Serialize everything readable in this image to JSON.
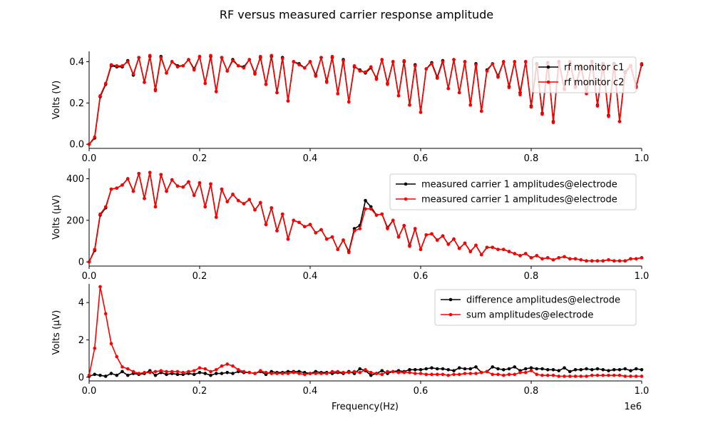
{
  "figure": {
    "title": "RF versus measured carrier response amplitude",
    "xlabel": "Frequency(Hz)",
    "x_offset_label": "1e6"
  },
  "colors": {
    "series_a": "#000000",
    "series_b": "#ff0000"
  },
  "chart_data": [
    {
      "type": "line",
      "ylabel": "Volts (V)",
      "xlim": [
        0,
        1000000
      ],
      "ylim": [
        -0.02,
        0.45
      ],
      "xticks": [
        0,
        200000,
        400000,
        600000,
        800000,
        1000000
      ],
      "xtick_labels": [
        "0.0",
        "0.2",
        "0.4",
        "0.6",
        "0.8",
        "1.0"
      ],
      "yticks": [
        0,
        0.2,
        0.4
      ],
      "ytick_labels": [
        "0.0",
        "0.2",
        "0.4"
      ],
      "legend_loc": "upper right",
      "x": [
        0,
        10000,
        20000,
        30000,
        40000,
        50000,
        60000,
        70000,
        80000,
        90000,
        100000,
        110000,
        120000,
        130000,
        140000,
        150000,
        160000,
        170000,
        180000,
        190000,
        200000,
        210000,
        220000,
        230000,
        240000,
        250000,
        260000,
        270000,
        280000,
        290000,
        300000,
        310000,
        320000,
        330000,
        340000,
        350000,
        360000,
        370000,
        380000,
        390000,
        400000,
        410000,
        420000,
        430000,
        440000,
        450000,
        460000,
        470000,
        480000,
        490000,
        500000,
        510000,
        520000,
        530000,
        540000,
        550000,
        560000,
        570000,
        580000,
        590000,
        600000,
        610000,
        620000,
        630000,
        640000,
        650000,
        660000,
        670000,
        680000,
        690000,
        700000,
        710000,
        720000,
        730000,
        740000,
        750000,
        760000,
        770000,
        780000,
        790000,
        800000,
        810000,
        820000,
        830000,
        840000,
        850000,
        860000,
        870000,
        880000,
        890000,
        900000,
        910000,
        920000,
        930000,
        940000,
        950000,
        960000,
        970000,
        980000,
        990000,
        1000000
      ],
      "series": [
        {
          "name": "rf monitor c1",
          "color": "#000000",
          "values": [
            0.0,
            0.03,
            0.23,
            0.29,
            0.38,
            0.375,
            0.375,
            0.405,
            0.335,
            0.42,
            0.3,
            0.425,
            0.265,
            0.425,
            0.345,
            0.4,
            0.38,
            0.38,
            0.41,
            0.365,
            0.425,
            0.295,
            0.425,
            0.255,
            0.42,
            0.355,
            0.41,
            0.38,
            0.375,
            0.41,
            0.345,
            0.42,
            0.29,
            0.425,
            0.25,
            0.42,
            0.21,
            0.4,
            0.39,
            0.37,
            0.4,
            0.335,
            0.42,
            0.305,
            0.42,
            0.245,
            0.41,
            0.205,
            0.375,
            0.36,
            0.345,
            0.37,
            0.32,
            0.41,
            0.295,
            0.4,
            0.235,
            0.4,
            0.19,
            0.385,
            0.155,
            0.365,
            0.395,
            0.325,
            0.405,
            0.27,
            0.41,
            0.25,
            0.4,
            0.19,
            0.39,
            0.16,
            0.36,
            0.39,
            0.33,
            0.4,
            0.28,
            0.4,
            0.25,
            0.4,
            0.185,
            0.39,
            0.15,
            0.395,
            0.11,
            0.4,
            0.27,
            0.4,
            0.28,
            0.38,
            0.25,
            0.4,
            0.19,
            0.39,
            0.14,
            0.39,
            0.11,
            0.35,
            0.38,
            0.28,
            0.385
          ]
        },
        {
          "name": "rf monitor c2",
          "color": "#ff0000",
          "values": [
            0.0,
            0.035,
            0.235,
            0.295,
            0.385,
            0.38,
            0.38,
            0.4,
            0.34,
            0.42,
            0.3,
            0.43,
            0.26,
            0.42,
            0.345,
            0.4,
            0.375,
            0.38,
            0.41,
            0.36,
            0.425,
            0.295,
            0.43,
            0.255,
            0.42,
            0.355,
            0.405,
            0.38,
            0.37,
            0.41,
            0.34,
            0.425,
            0.29,
            0.43,
            0.25,
            0.415,
            0.21,
            0.4,
            0.385,
            0.37,
            0.4,
            0.33,
            0.42,
            0.3,
            0.425,
            0.245,
            0.405,
            0.205,
            0.38,
            0.355,
            0.35,
            0.375,
            0.315,
            0.41,
            0.29,
            0.4,
            0.235,
            0.405,
            0.19,
            0.38,
            0.155,
            0.365,
            0.39,
            0.32,
            0.4,
            0.27,
            0.41,
            0.25,
            0.4,
            0.19,
            0.385,
            0.16,
            0.355,
            0.39,
            0.325,
            0.4,
            0.275,
            0.4,
            0.24,
            0.4,
            0.18,
            0.385,
            0.145,
            0.39,
            0.105,
            0.395,
            0.265,
            0.4,
            0.275,
            0.375,
            0.245,
            0.395,
            0.185,
            0.385,
            0.135,
            0.385,
            0.11,
            0.345,
            0.38,
            0.275,
            0.39
          ]
        }
      ]
    },
    {
      "type": "line",
      "ylabel": "Volts ($\\mu$V)",
      "xlim": [
        0,
        1000000
      ],
      "ylim": [
        -20,
        450
      ],
      "xticks": [
        0,
        200000,
        400000,
        600000,
        800000,
        1000000
      ],
      "xtick_labels": [
        "0.0",
        "0.2",
        "0.4",
        "0.6",
        "0.8",
        "1.0"
      ],
      "yticks": [
        0,
        200,
        400
      ],
      "ytick_labels": [
        "0",
        "200",
        "400"
      ],
      "legend_loc": "upper right",
      "x": [
        0,
        10000,
        20000,
        30000,
        40000,
        50000,
        60000,
        70000,
        80000,
        90000,
        100000,
        110000,
        120000,
        130000,
        140000,
        150000,
        160000,
        170000,
        180000,
        190000,
        200000,
        210000,
        220000,
        230000,
        240000,
        250000,
        260000,
        270000,
        280000,
        290000,
        300000,
        310000,
        320000,
        330000,
        340000,
        350000,
        360000,
        370000,
        380000,
        390000,
        400000,
        410000,
        420000,
        430000,
        440000,
        450000,
        460000,
        470000,
        480000,
        490000,
        500000,
        510000,
        520000,
        530000,
        540000,
        550000,
        560000,
        570000,
        580000,
        590000,
        600000,
        610000,
        620000,
        630000,
        640000,
        650000,
        660000,
        670000,
        680000,
        690000,
        700000,
        710000,
        720000,
        730000,
        740000,
        750000,
        760000,
        770000,
        780000,
        790000,
        800000,
        810000,
        820000,
        830000,
        840000,
        850000,
        860000,
        870000,
        880000,
        890000,
        900000,
        910000,
        920000,
        930000,
        940000,
        950000,
        960000,
        970000,
        980000,
        990000,
        1000000
      ],
      "series": [
        {
          "name": "measured carrier 1 amplitudes@electrode",
          "color": "#000000",
          "values": [
            0,
            55,
            225,
            260,
            350,
            355,
            370,
            400,
            340,
            425,
            305,
            430,
            265,
            420,
            340,
            395,
            365,
            360,
            385,
            320,
            380,
            265,
            375,
            215,
            350,
            290,
            325,
            295,
            280,
            300,
            250,
            285,
            180,
            260,
            150,
            230,
            110,
            200,
            190,
            170,
            180,
            140,
            155,
            110,
            120,
            60,
            105,
            50,
            160,
            175,
            295,
            265,
            225,
            230,
            165,
            200,
            120,
            175,
            80,
            160,
            60,
            130,
            135,
            105,
            125,
            85,
            110,
            65,
            90,
            50,
            80,
            35,
            70,
            70,
            60,
            60,
            50,
            40,
            30,
            40,
            20,
            30,
            15,
            20,
            10,
            20,
            25,
            15,
            15,
            10,
            5,
            5,
            5,
            5,
            10,
            5,
            5,
            5,
            15,
            15,
            20
          ]
        },
        {
          "name": "measured carrier 1 amplitudes@electrode",
          "color": "#ff0000",
          "values": [
            0,
            60,
            230,
            265,
            350,
            355,
            370,
            400,
            340,
            425,
            305,
            430,
            265,
            420,
            340,
            395,
            365,
            360,
            385,
            320,
            380,
            265,
            375,
            215,
            350,
            290,
            325,
            295,
            280,
            300,
            250,
            285,
            180,
            260,
            150,
            230,
            110,
            200,
            190,
            170,
            180,
            140,
            155,
            110,
            120,
            60,
            105,
            45,
            150,
            160,
            255,
            255,
            225,
            230,
            160,
            200,
            120,
            175,
            75,
            160,
            60,
            130,
            135,
            105,
            125,
            85,
            110,
            65,
            90,
            50,
            80,
            35,
            70,
            70,
            60,
            60,
            50,
            40,
            30,
            40,
            20,
            30,
            15,
            20,
            10,
            20,
            25,
            15,
            15,
            10,
            5,
            5,
            5,
            5,
            10,
            5,
            5,
            5,
            15,
            15,
            20
          ]
        }
      ]
    },
    {
      "type": "line",
      "ylabel": "Volts ($\\mu$V)",
      "xlim": [
        0,
        1000000
      ],
      "ylim": [
        -0.2,
        5
      ],
      "xticks": [
        0,
        200000,
        400000,
        600000,
        800000,
        1000000
      ],
      "xtick_labels": [
        "0.0",
        "0.2",
        "0.4",
        "0.6",
        "0.8",
        "1.0"
      ],
      "yticks": [
        0,
        2,
        4
      ],
      "ytick_labels": [
        "0",
        "2",
        "4"
      ],
      "legend_loc": "upper right",
      "x": [
        0,
        10000,
        20000,
        30000,
        40000,
        50000,
        60000,
        70000,
        80000,
        90000,
        100000,
        110000,
        120000,
        130000,
        140000,
        150000,
        160000,
        170000,
        180000,
        190000,
        200000,
        210000,
        220000,
        230000,
        240000,
        250000,
        260000,
        270000,
        280000,
        290000,
        300000,
        310000,
        320000,
        330000,
        340000,
        350000,
        360000,
        370000,
        380000,
        390000,
        400000,
        410000,
        420000,
        430000,
        440000,
        450000,
        460000,
        470000,
        480000,
        490000,
        500000,
        510000,
        520000,
        530000,
        540000,
        550000,
        560000,
        570000,
        580000,
        590000,
        600000,
        610000,
        620000,
        630000,
        640000,
        650000,
        660000,
        670000,
        680000,
        690000,
        700000,
        710000,
        720000,
        730000,
        740000,
        750000,
        760000,
        770000,
        780000,
        790000,
        800000,
        810000,
        820000,
        830000,
        840000,
        850000,
        860000,
        870000,
        880000,
        890000,
        900000,
        910000,
        920000,
        930000,
        940000,
        950000,
        960000,
        970000,
        980000,
        990000,
        1000000
      ],
      "series": [
        {
          "name": "difference amplitudes@electrode",
          "color": "#000000",
          "values": [
            0.05,
            0.15,
            0.1,
            0.05,
            0.2,
            0.1,
            0.3,
            0.1,
            0.2,
            0.15,
            0.2,
            0.35,
            0.1,
            0.25,
            0.15,
            0.2,
            0.15,
            0.15,
            0.2,
            0.15,
            0.25,
            0.2,
            0.1,
            0.2,
            0.2,
            0.25,
            0.2,
            0.3,
            0.25,
            0.25,
            0.2,
            0.3,
            0.15,
            0.3,
            0.25,
            0.25,
            0.3,
            0.3,
            0.3,
            0.25,
            0.2,
            0.3,
            0.25,
            0.25,
            0.2,
            0.25,
            0.2,
            0.3,
            0.2,
            0.45,
            0.35,
            0.1,
            0.2,
            0.35,
            0.2,
            0.3,
            0.35,
            0.3,
            0.4,
            0.4,
            0.4,
            0.45,
            0.5,
            0.45,
            0.45,
            0.4,
            0.35,
            0.5,
            0.45,
            0.45,
            0.55,
            0.25,
            0.3,
            0.55,
            0.45,
            0.4,
            0.45,
            0.55,
            0.35,
            0.45,
            0.5,
            0.45,
            0.45,
            0.4,
            0.4,
            0.35,
            0.5,
            0.3,
            0.4,
            0.4,
            0.45,
            0.4,
            0.45,
            0.4,
            0.35,
            0.4,
            0.4,
            0.45,
            0.35,
            0.45,
            0.4
          ]
        },
        {
          "name": "sum amplitudes@electrode",
          "color": "#ff0000",
          "values": [
            0.1,
            1.55,
            4.85,
            3.4,
            1.8,
            1.1,
            0.55,
            0.45,
            0.3,
            0.2,
            0.25,
            0.25,
            0.3,
            0.35,
            0.3,
            0.3,
            0.3,
            0.25,
            0.3,
            0.35,
            0.5,
            0.45,
            0.3,
            0.4,
            0.6,
            0.7,
            0.6,
            0.4,
            0.3,
            0.25,
            0.2,
            0.35,
            0.25,
            0.2,
            0.2,
            0.2,
            0.2,
            0.25,
            0.2,
            0.15,
            0.2,
            0.2,
            0.2,
            0.2,
            0.3,
            0.3,
            0.25,
            0.25,
            0.3,
            0.25,
            0.4,
            0.25,
            0.2,
            0.15,
            0.3,
            0.3,
            0.25,
            0.25,
            0.25,
            0.2,
            0.2,
            0.15,
            0.15,
            0.15,
            0.15,
            0.1,
            0.15,
            0.15,
            0.2,
            0.2,
            0.2,
            0.25,
            0.3,
            0.15,
            0.15,
            0.1,
            0.15,
            0.15,
            0.25,
            0.25,
            0.35,
            0.15,
            0.1,
            0.1,
            0.1,
            0.05,
            0.05,
            0.05,
            0.05,
            0.05,
            0.05,
            0.1,
            0.1,
            0.1,
            0.1,
            0.1,
            0.1,
            0.05,
            0.05,
            0.05,
            0.05
          ]
        }
      ]
    }
  ]
}
